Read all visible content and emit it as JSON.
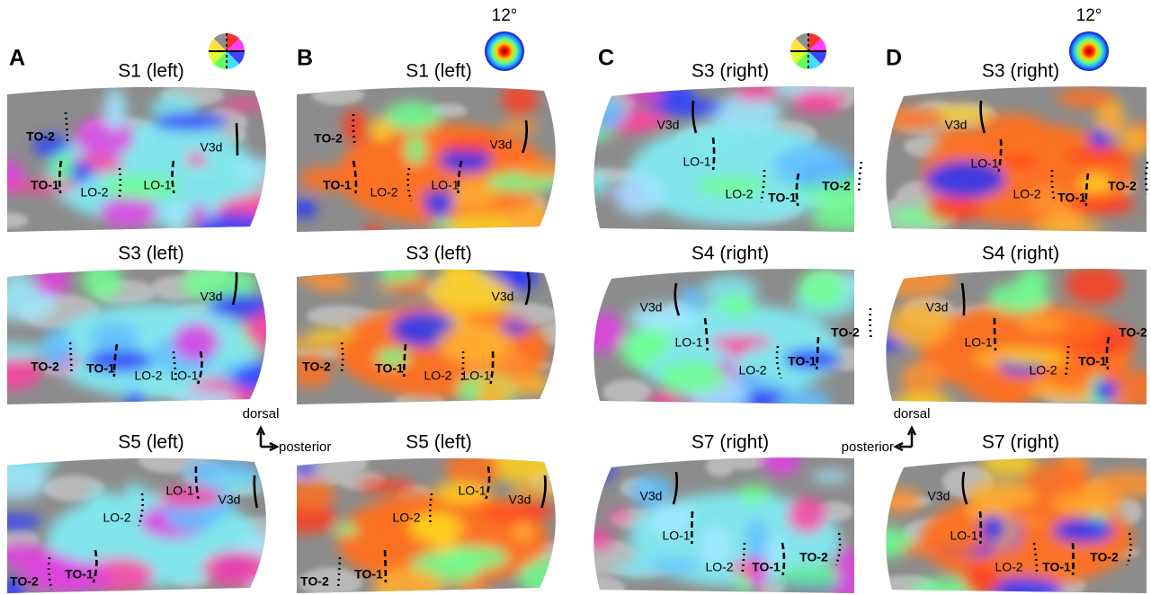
{
  "panels": [
    {
      "letter": "A",
      "maps": [
        {
          "title": "S1 (left)",
          "labels": [
            "TO-2",
            "TO-1",
            "LO-2",
            "LO-1",
            "V3d"
          ]
        },
        {
          "title": "S3 (left)",
          "labels": [
            "TO-2",
            "TO-1",
            "LO-2",
            "LO-1",
            "V3d"
          ]
        },
        {
          "title": "S5 (left)",
          "labels": [
            "TO-2",
            "TO-1",
            "LO-2",
            "LO-1",
            "V3d"
          ]
        }
      ]
    },
    {
      "letter": "B",
      "scale_label": "12°",
      "maps": [
        {
          "title": "S1 (left)",
          "labels": [
            "TO-2",
            "TO-1",
            "LO-2",
            "LO-1",
            "V3d"
          ]
        },
        {
          "title": "S3 (left)",
          "labels": [
            "TO-2",
            "TO-1",
            "LO-2",
            "LO-1",
            "V3d"
          ]
        },
        {
          "title": "S5 (left)",
          "labels": [
            "TO-2",
            "TO-1",
            "LO-2",
            "LO-1",
            "V3d"
          ]
        }
      ]
    },
    {
      "letter": "C",
      "maps": [
        {
          "title": "S3 (right)",
          "labels": [
            "TO-2",
            "TO-1",
            "LO-2",
            "LO-1",
            "V3d"
          ]
        },
        {
          "title": "S4 (right)",
          "labels": [
            "TO-2",
            "TO-1",
            "LO-2",
            "LO-1",
            "V3d"
          ]
        },
        {
          "title": "S7 (right)",
          "labels": [
            "TO-2",
            "TO-1",
            "LO-2",
            "LO-1",
            "V3d"
          ]
        }
      ]
    },
    {
      "letter": "D",
      "scale_label": "12°",
      "maps": [
        {
          "title": "S3 (right)",
          "labels": [
            "TO-2",
            "TO-1",
            "LO-2",
            "LO-1",
            "V3d"
          ]
        },
        {
          "title": "S4 (right)",
          "labels": [
            "TO-2",
            "TO-1",
            "LO-2",
            "LO-1",
            "V3d"
          ]
        },
        {
          "title": "S7 (right)",
          "labels": [
            "TO-2",
            "TO-1",
            "LO-2",
            "LO-1",
            "V3d"
          ]
        }
      ]
    }
  ],
  "orientation": [
    {
      "up": "dorsal",
      "side": "posterior"
    },
    {
      "up": "dorsal",
      "side": "posterior"
    }
  ]
}
